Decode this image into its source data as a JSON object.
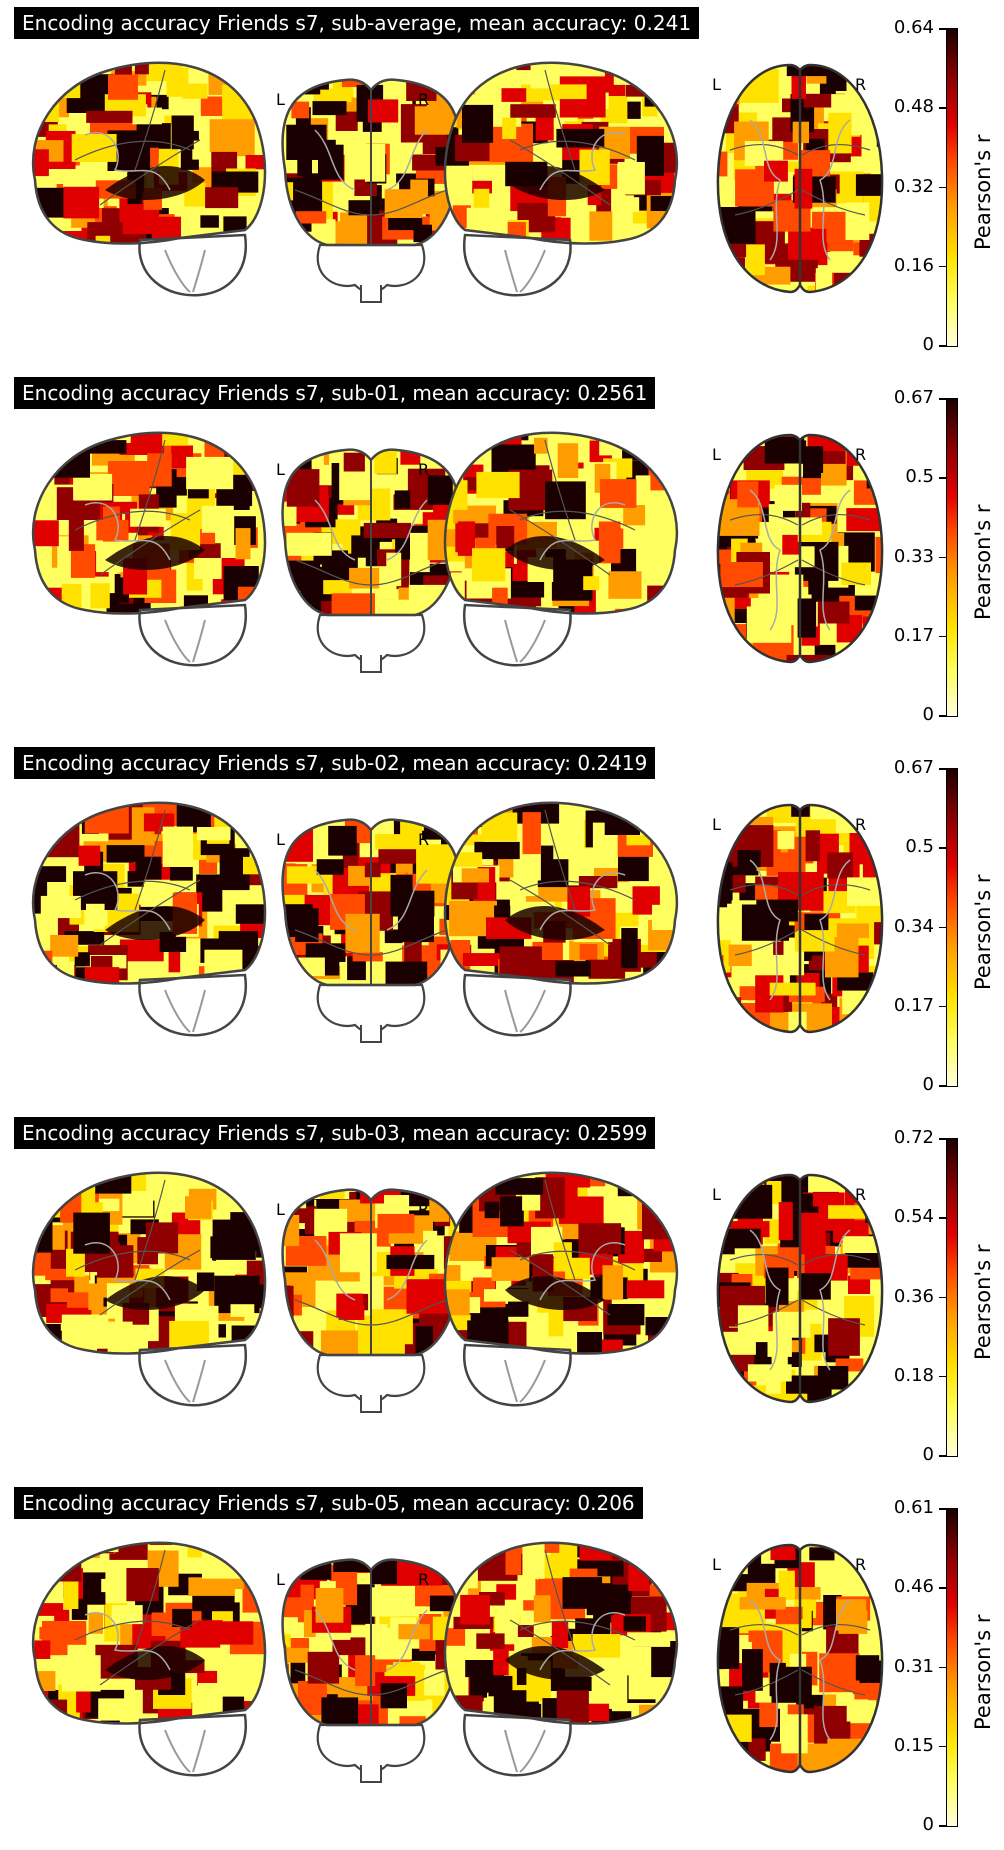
{
  "figure": {
    "panels": [
      {
        "title": "Encoding accuracy Friends s7, sub-average, mean accuracy: 0.241",
        "ticks": [
          "0.64",
          "0.48",
          "0.32",
          "0.16",
          "0"
        ]
      },
      {
        "title": "Encoding accuracy Friends s7, sub-01, mean accuracy: 0.2561",
        "ticks": [
          "0.67",
          "0.5",
          "0.33",
          "0.17",
          "0"
        ]
      },
      {
        "title": "Encoding accuracy Friends s7, sub-02, mean accuracy: 0.2419",
        "ticks": [
          "0.67",
          "0.5",
          "0.34",
          "0.17",
          "0"
        ]
      },
      {
        "title": "Encoding accuracy Friends s7, sub-03, mean accuracy: 0.2599",
        "ticks": [
          "0.72",
          "0.54",
          "0.36",
          "0.18",
          "0"
        ]
      },
      {
        "title": "Encoding accuracy Friends s7, sub-05, mean accuracy: 0.206",
        "ticks": [
          "0.61",
          "0.46",
          "0.31",
          "0.15",
          "0"
        ]
      }
    ],
    "colorbar_label": "Pearson's r",
    "hemisphere_left": "L",
    "hemisphere_right": "R",
    "colormap": [
      "#ffffe0",
      "#ffff60",
      "#ffe200",
      "#ff9d00",
      "#ff4a00",
      "#e00000",
      "#900000",
      "#1a0000"
    ]
  }
}
